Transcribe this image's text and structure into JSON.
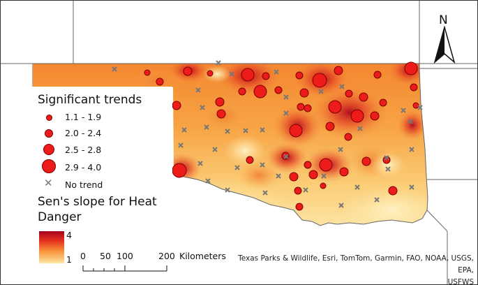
{
  "legend": {
    "significant_title": "Significant trends",
    "classes": [
      {
        "label": "1.1 - 1.9",
        "size": 8
      },
      {
        "label": "2.0 - 2.4",
        "size": 11
      },
      {
        "label": "2.5 - 2.8",
        "size": 15
      },
      {
        "label": "2.9 - 4.0",
        "size": 19
      }
    ],
    "no_trend_label": "No trend",
    "ramp_title_line1": "Sen's slope for Heat",
    "ramp_title_line2": "Danger",
    "ramp_max": "4",
    "ramp_min": "1"
  },
  "scale": {
    "ticks": [
      "0",
      "50",
      "100",
      "200"
    ],
    "unit": "Kilometers"
  },
  "north": {
    "label": "N"
  },
  "attribution": {
    "line1": "Texas Parks & Wildlife, Esri, TomTom, Garmin, FAO, NOAA, USGS, EPA,",
    "line2": "USFWS"
  },
  "colors": {
    "ramp_high": "#a4001e",
    "ramp_low": "#fde6a4",
    "significant_marker": "#ee1b1b",
    "no_trend_marker": "#777777"
  }
}
